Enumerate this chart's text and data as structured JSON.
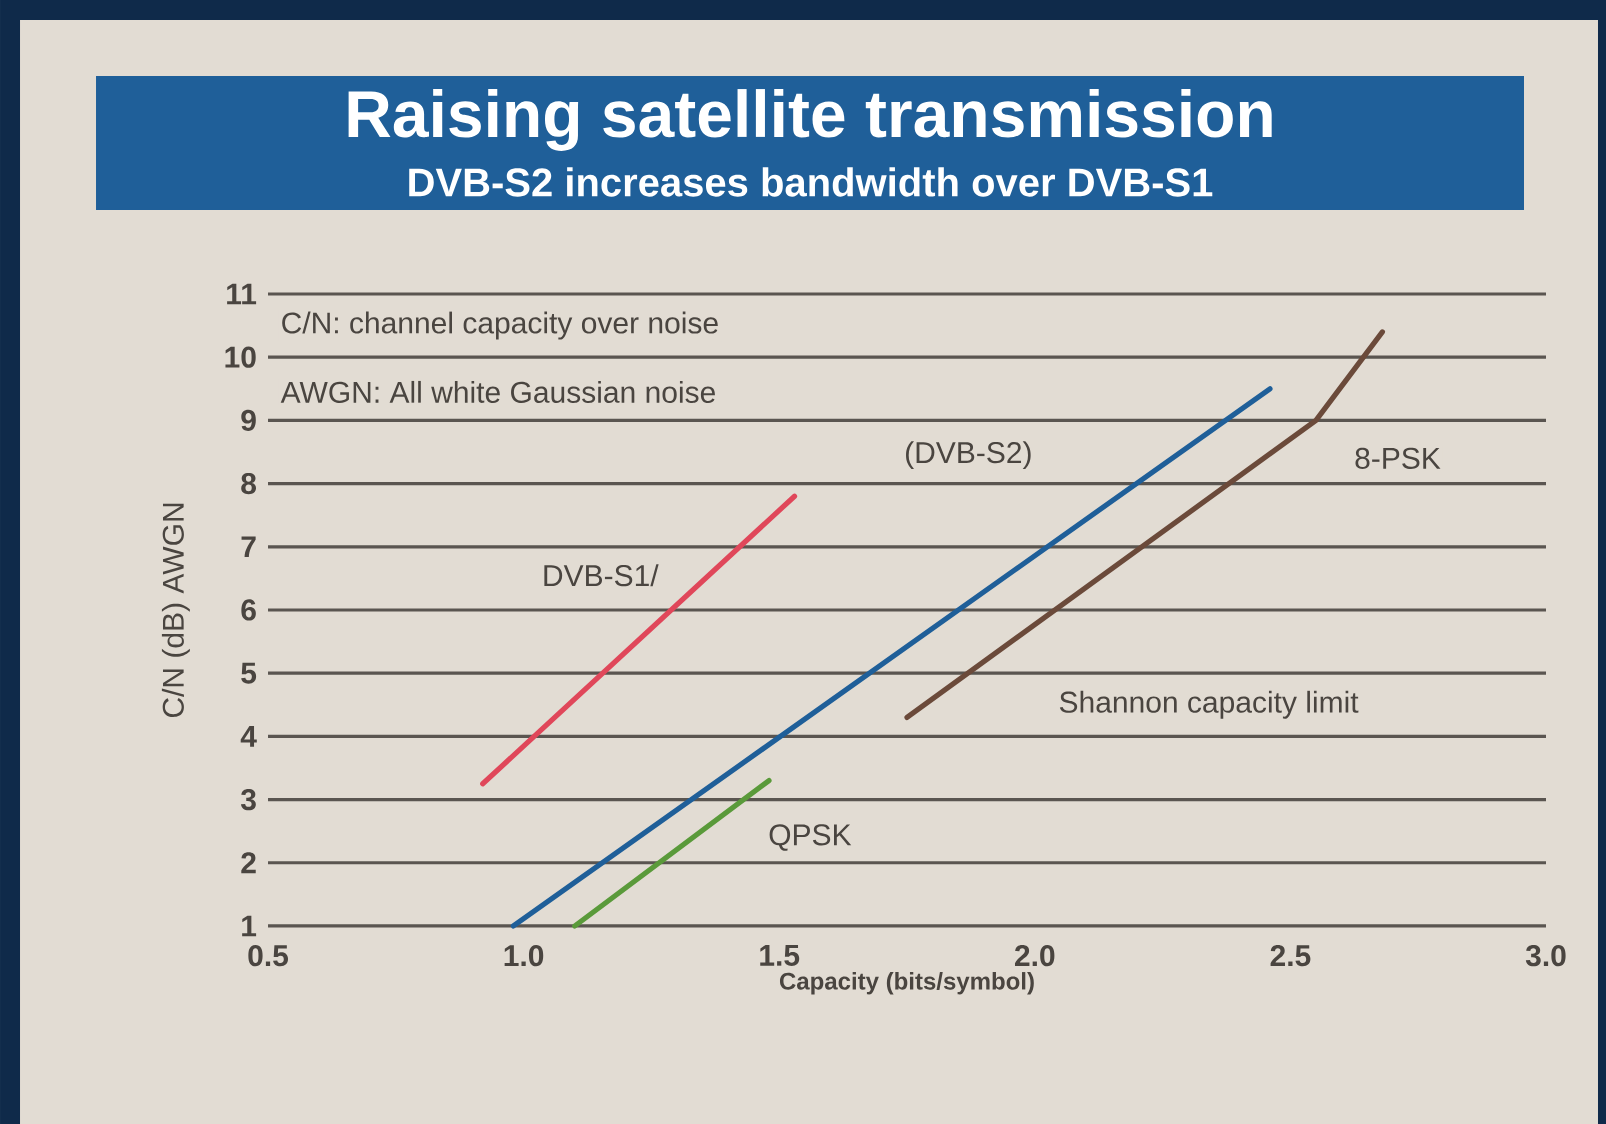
{
  "chart_data": {
    "type": "line",
    "title": "Raising satellite transmission",
    "subtitle": "DVB-S2 increases bandwidth over DVB-S1",
    "xlabel": "Capacity (bits/symbol)",
    "ylabel": "C/N (dB) AWGN",
    "xlim": [
      0.5,
      3.0
    ],
    "ylim": [
      1,
      11
    ],
    "xticks": [
      0.5,
      {
        "value": 1,
        "label": "1.0"
      },
      1.5,
      {
        "value": 2,
        "label": "2.0"
      },
      2.5,
      {
        "value": 3,
        "label": "3.0"
      }
    ],
    "yticks": [
      1,
      2,
      3,
      4,
      5,
      6,
      7,
      8,
      9,
      10,
      11
    ],
    "grid": "y",
    "line_style": "solid",
    "marker": "none",
    "series": [
      {
        "name": "DVB-S1/",
        "color": "#e0475a",
        "x": [
          0.92,
          1.53
        ],
        "values": [
          3.25,
          7.8
        ]
      },
      {
        "name": "(DVB-S2)",
        "color": "#1f5f99",
        "x": [
          0.98,
          2.46
        ],
        "values": [
          1,
          9.5
        ]
      },
      {
        "name": "QPSK",
        "color": "#5a9a3a",
        "x": [
          1.1,
          1.48
        ],
        "values": [
          1,
          3.3
        ]
      },
      {
        "name": "Shannon capacity limit",
        "color": "#6b4a3a",
        "x": [
          1.75,
          2.55,
          2.68
        ],
        "values": [
          4.3,
          9.0,
          10.4
        ]
      }
    ],
    "annotations": [
      "C/N: channel capacity over noise",
      "AWGN: All white Gaussian noise",
      "8-PSK"
    ]
  }
}
